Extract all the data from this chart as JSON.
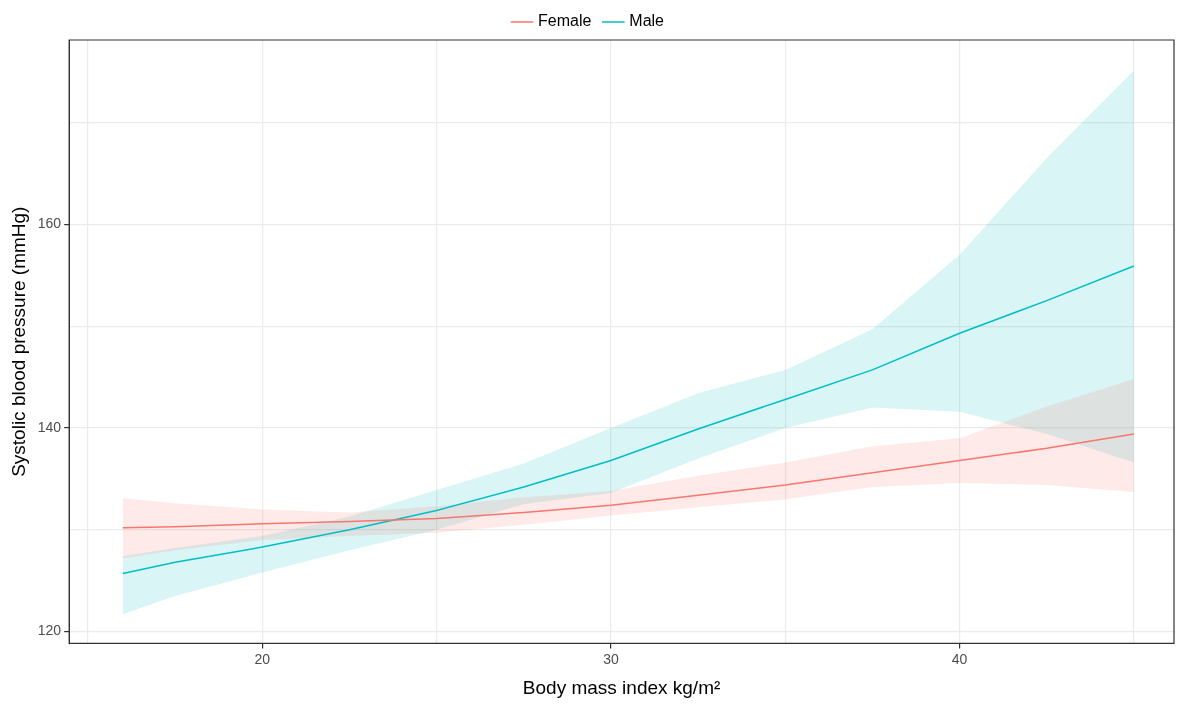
{
  "chart_data": {
    "type": "line",
    "xlabel": "Body mass index kg/m²",
    "ylabel": "Systolic blood pressure (mmHg)",
    "xlim": [
      14.46,
      46.15
    ],
    "ylim": [
      118.84,
      178.1
    ],
    "xticks": [
      {
        "value": 15,
        "label": null
      },
      20,
      {
        "value": 25,
        "label": null
      },
      30,
      {
        "value": 35,
        "label": null
      },
      40,
      {
        "value": 45,
        "label": null
      }
    ],
    "yticks": [
      120,
      {
        "value": 130,
        "label": null
      },
      140,
      {
        "value": 150,
        "label": null
      },
      160,
      {
        "value": 170,
        "label": null
      }
    ],
    "grid": true,
    "legend": "top",
    "marker": "none",
    "line_style": "solid",
    "x": [
      16,
      17.5,
      20,
      22.5,
      25,
      27.5,
      30,
      32.5,
      35,
      37.5,
      40,
      42.5,
      45
    ],
    "series": [
      {
        "name": "Female",
        "color": "#f8766d",
        "values": [
          130.2,
          130.3,
          130.6,
          130.8,
          131.1,
          131.7,
          132.4,
          133.4,
          134.4,
          135.6,
          136.8,
          138.0,
          139.4
        ],
        "lower": [
          127.2,
          128.0,
          129.0,
          129.4,
          129.7,
          130.5,
          131.4,
          132.2,
          133.0,
          134.2,
          134.6,
          134.4,
          133.7
        ],
        "upper": [
          133.1,
          132.6,
          132.0,
          131.7,
          132.3,
          133.2,
          133.8,
          135.3,
          136.6,
          138.2,
          139.0,
          142.1,
          144.8
        ]
      },
      {
        "name": "Male",
        "color": "#00bfc4",
        "values": [
          125.7,
          126.8,
          128.3,
          130.0,
          131.9,
          134.2,
          136.8,
          139.9,
          142.8,
          145.7,
          149.3,
          152.5,
          155.9
        ],
        "lower": [
          121.7,
          123.5,
          125.8,
          128.0,
          130.0,
          132.5,
          133.6,
          137.0,
          140.0,
          142.0,
          141.6,
          139.4,
          136.6
        ],
        "upper": [
          127.4,
          128.2,
          129.4,
          131.3,
          133.9,
          136.5,
          140.0,
          143.4,
          145.7,
          149.7,
          157.0,
          166.5,
          175.1
        ]
      }
    ]
  }
}
